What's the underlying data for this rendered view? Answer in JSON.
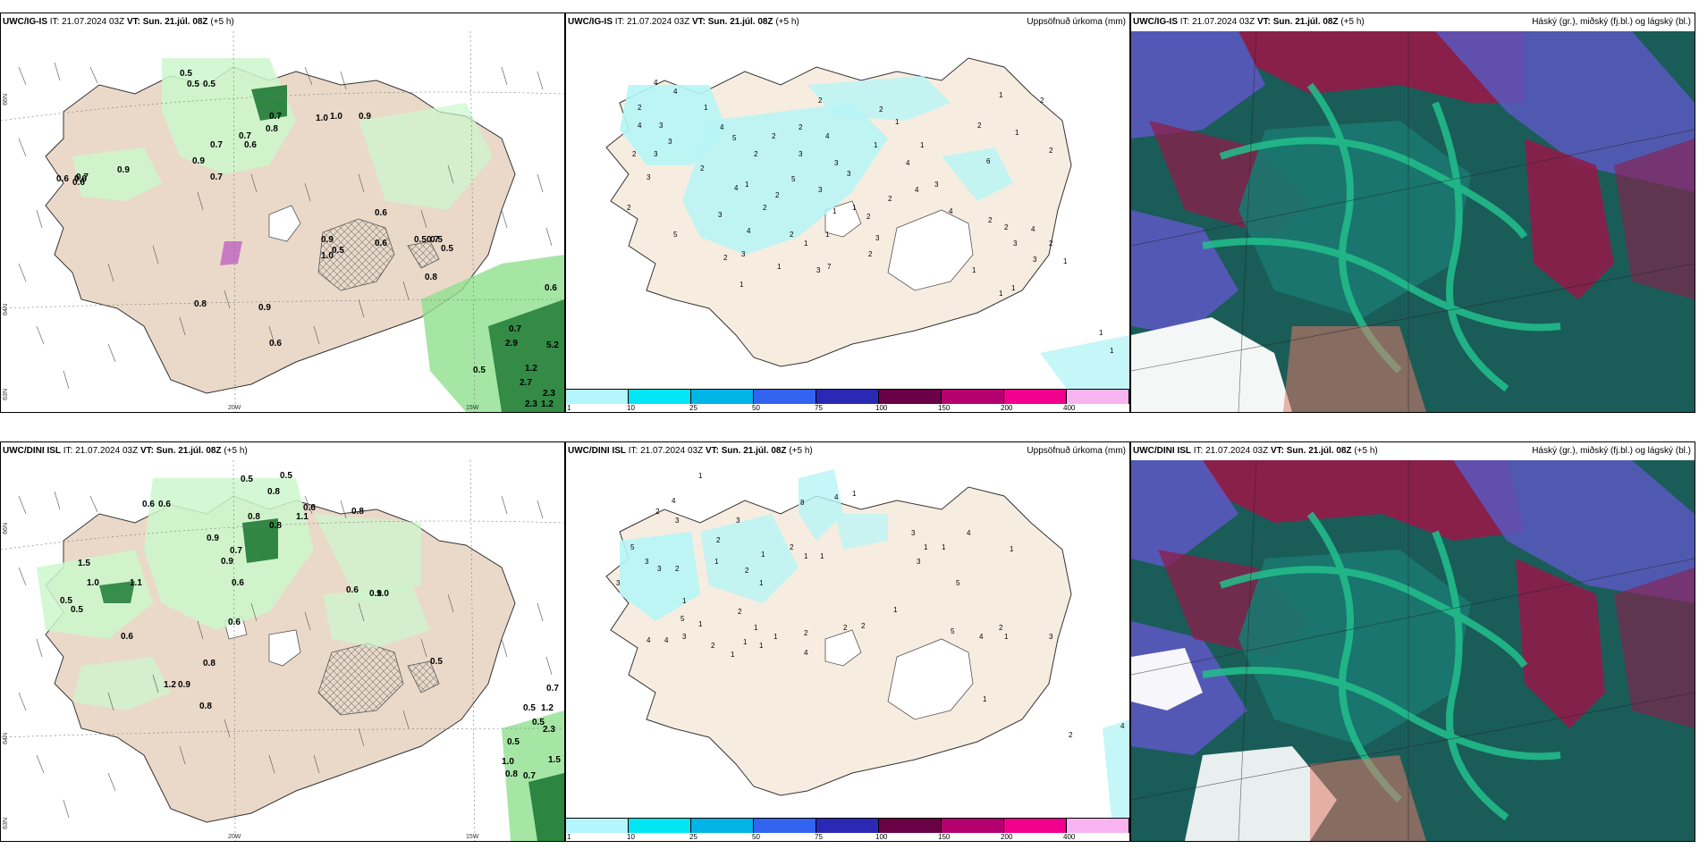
{
  "panels": {
    "p1": {
      "model": "UWC/IG-IS",
      "it": "IT: 21.07.2024 03Z",
      "vt": "VT: Sun. 21.júl. 08Z",
      "lead": "(+5 h)",
      "right_title": "",
      "lat_labels": [
        "66N",
        "64N",
        "63N"
      ],
      "lon_labels": [
        "20W",
        "15W"
      ],
      "values": [
        "0.5",
        "0.5",
        "0.5",
        "0.7",
        "0.6",
        "0.8",
        "0.7",
        "0.9",
        "0.7",
        "0.6",
        "0.9",
        "0.6",
        "1.0",
        "1.0",
        "0.7",
        "0.9",
        "0.6",
        "0.7",
        "0.6",
        "0.5",
        "0.9",
        "1.0",
        "0.6",
        "0.5",
        "0.8",
        "0.9",
        "0.6",
        "0.8",
        "0.7",
        "0.5",
        "1.2",
        "2.7",
        "0.7",
        "0.6",
        "2.9",
        "0.5",
        "0.5",
        "5.2",
        "2.3",
        "1.2",
        "2.3"
      ]
    },
    "p2": {
      "model": "UWC/IG-IS",
      "it": "IT: 21.07.2024 03Z",
      "vt": "VT: Sun. 21.júl. 08Z",
      "lead": "(+5 h)",
      "right_title": "Uppsöfnuð úrkoma (mm)",
      "values": [
        "4",
        "4",
        "2",
        "4",
        "3",
        "2",
        "3",
        "3",
        "2",
        "3",
        "1",
        "4",
        "2",
        "5",
        "1",
        "2",
        "2",
        "2",
        "2",
        "3",
        "4",
        "3",
        "5",
        "3",
        "3",
        "2",
        "2",
        "3",
        "2",
        "1",
        "4",
        "1",
        "1",
        "1",
        "2",
        "2",
        "4",
        "4",
        "1",
        "1",
        "2",
        "1",
        "3",
        "4",
        "6",
        "2",
        "2",
        "3",
        "4",
        "3",
        "2",
        "1",
        "1",
        "2",
        "1",
        "1",
        "2",
        "2",
        "1",
        "1",
        "1",
        "1",
        "3",
        "1",
        "1",
        "7",
        "3",
        "2",
        "3",
        "2",
        "4",
        "5"
      ],
      "colorbar_ticks": [
        "1",
        "10",
        "25",
        "50",
        "75",
        "100",
        "150",
        "200",
        "400"
      ]
    },
    "p3": {
      "model": "UWC/IG-IS",
      "it": "IT: 21.07.2024 03Z",
      "vt": "VT: Sun. 21.júl. 08Z",
      "lead": "(+5 h)",
      "right_title": "Háský (gr.), miðský (fj.bl.) og lágský (bl.)"
    },
    "p4": {
      "model": "UWC/DINI ISL",
      "it": "IT: 21.07.2024 03Z",
      "vt": "VT: Sun. 21.júl. 08Z",
      "lead": "(+5 h)",
      "right_title": "",
      "lat_labels": [
        "66N",
        "64N",
        "63N"
      ],
      "lon_labels": [
        "20W",
        "15W"
      ],
      "values": [
        "0.5",
        "0.5",
        "0.8",
        "0.6",
        "0.6",
        "0.8",
        "0.8",
        "0.9",
        "0.7",
        "1.1",
        "0.6",
        "0.8",
        "0.5",
        "1.5",
        "0.9",
        "0.9",
        "1.1",
        "0.6",
        "0.6",
        "1.0",
        "0.5",
        "0.6",
        "0.8",
        "0.9",
        "0.6",
        "0.5",
        "0.8",
        "1.2",
        "0.9",
        "0.7",
        "0.5",
        "0.5",
        "0.5",
        "1.0",
        "0.8",
        "0.7",
        "1.2",
        "2.3",
        "1.5"
      ]
    },
    "p5": {
      "model": "UWC/DINI ISL",
      "it": "IT: 21.07.2024 03Z",
      "vt": "VT: Sun. 21.júl. 08Z",
      "lead": "(+5 h)",
      "right_title": "Uppsöfnuð úrkoma (mm)",
      "values": [
        "1",
        "1",
        "4",
        "2",
        "3",
        "2",
        "3",
        "1",
        "8",
        "4",
        "5",
        "3",
        "3",
        "2",
        "2",
        "1",
        "3",
        "1",
        "2",
        "1",
        "1",
        "1",
        "5",
        "2",
        "1",
        "1",
        "1",
        "1",
        "4",
        "4",
        "3",
        "2",
        "1",
        "1",
        "4",
        "2",
        "2",
        "2",
        "1",
        "1",
        "3",
        "3",
        "4",
        "5",
        "4",
        "5",
        "1",
        "1",
        "1",
        "1",
        "3",
        "4",
        "2",
        "2"
      ],
      "colorbar_ticks": [
        "1",
        "10",
        "25",
        "50",
        "75",
        "100",
        "150",
        "200",
        "400"
      ]
    },
    "p6": {
      "model": "UWC/DINI ISL",
      "it": "IT: 21.07.2024 03Z",
      "vt": "VT: Sun. 21.júl. 08Z",
      "lead": "(+5 h)",
      "right_title": "Háský (gr.), miðský (fj.bl.) og lágský (bl.)"
    }
  },
  "colorbar_colors": [
    "#b3f6fb",
    "#00e6f4",
    "#00b4e6",
    "#3264f0",
    "#2a28b4",
    "#6a0046",
    "#b4006e",
    "#f0008c",
    "#f8b4f0"
  ],
  "colors": {
    "land": "#f6ede0",
    "land_brown": "#ead9c9",
    "precip_light": "#ccf7cc",
    "precip_green": "#8fe08f",
    "precip_dark": "#1f7a35",
    "precip_cyan": "#b6f5f6",
    "cloud_high": "#8e1c4a",
    "cloud_mid": "#5a58c0",
    "cloud_low": "#1a7870",
    "cloud_teal": "#22c08c"
  }
}
